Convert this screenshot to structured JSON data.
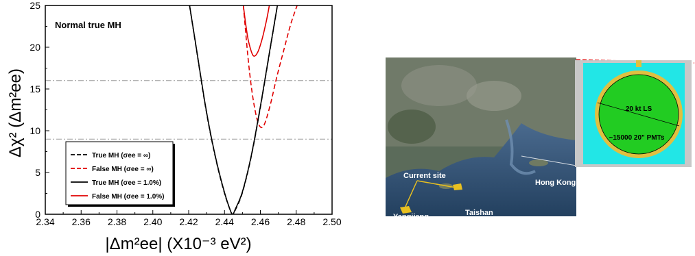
{
  "chart_data": {
    "type": "line",
    "annotation": "Normal true MH",
    "xlabel": "|Δm²ee| (X10⁻³ eV²)",
    "ylabel": "Δχ² (Δm²ee)",
    "xlim": [
      2.34,
      2.5
    ],
    "ylim": [
      0,
      25
    ],
    "xticks": [
      "2.34",
      "2.36",
      "2.38",
      "2.40",
      "2.42",
      "2.44",
      "2.46",
      "2.48",
      "2.50"
    ],
    "yticks": [
      "0",
      "5",
      "10",
      "15",
      "20",
      "25"
    ],
    "reference_lines": [
      {
        "y": 16,
        "style": "dash-dot"
      },
      {
        "y": 9,
        "style": "dash-dot"
      }
    ],
    "legend_position": "bottom-left",
    "series": [
      {
        "name": "True MH (σee = ∞)",
        "color": "#000000",
        "dashed": true,
        "x": [
          2.4205,
          2.4245,
          2.4285,
          2.432,
          2.436,
          2.44,
          2.443,
          2.4445,
          2.446,
          2.45,
          2.455,
          2.46,
          2.465,
          2.4695
        ],
        "y": [
          25,
          19.5,
          14.0,
          9.8,
          5.8,
          2.5,
          0.6,
          0,
          0.5,
          2.6,
          7.0,
          12.8,
          19.2,
          25
        ]
      },
      {
        "name": "False MH (σee = ∞)",
        "color": "#e00000",
        "dashed": true,
        "x": [
          2.4505,
          2.453,
          2.455,
          2.457,
          2.459,
          2.461,
          2.463,
          2.466,
          2.469,
          2.473,
          2.477,
          2.4805
        ],
        "y": [
          25,
          19.0,
          15.2,
          12.5,
          10.8,
          10.4,
          11.2,
          13.5,
          16.3,
          19.6,
          22.8,
          25
        ]
      },
      {
        "name": "True MH (σee = 1.0%)",
        "color": "#000000",
        "dashed": false,
        "x": [
          2.4205,
          2.4245,
          2.4285,
          2.432,
          2.436,
          2.44,
          2.443,
          2.4445,
          2.446,
          2.45,
          2.455,
          2.46,
          2.465,
          2.4695
        ],
        "y": [
          25,
          19.6,
          14.1,
          9.9,
          5.9,
          2.6,
          0.6,
          0,
          0.6,
          2.7,
          7.1,
          12.9,
          19.3,
          25
        ]
      },
      {
        "name": "False MH (σee = 1.0%)",
        "color": "#e00000",
        "dashed": false,
        "x": [
          2.4505,
          2.452,
          2.4535,
          2.456,
          2.4585,
          2.461,
          2.4635,
          2.465
        ],
        "y": [
          25,
          22.5,
          20.6,
          19.0,
          19.4,
          21.0,
          23.3,
          25
        ]
      }
    ]
  },
  "map": {
    "labels": {
      "current_site": "Current site",
      "hong_kong": "Hong Kong",
      "taishan": "Taishan",
      "yangjiang": "Yangjiang"
    },
    "detector": {
      "center_label": "20 kt LS",
      "pmt_label": "~15000 20\" PMTs"
    }
  }
}
